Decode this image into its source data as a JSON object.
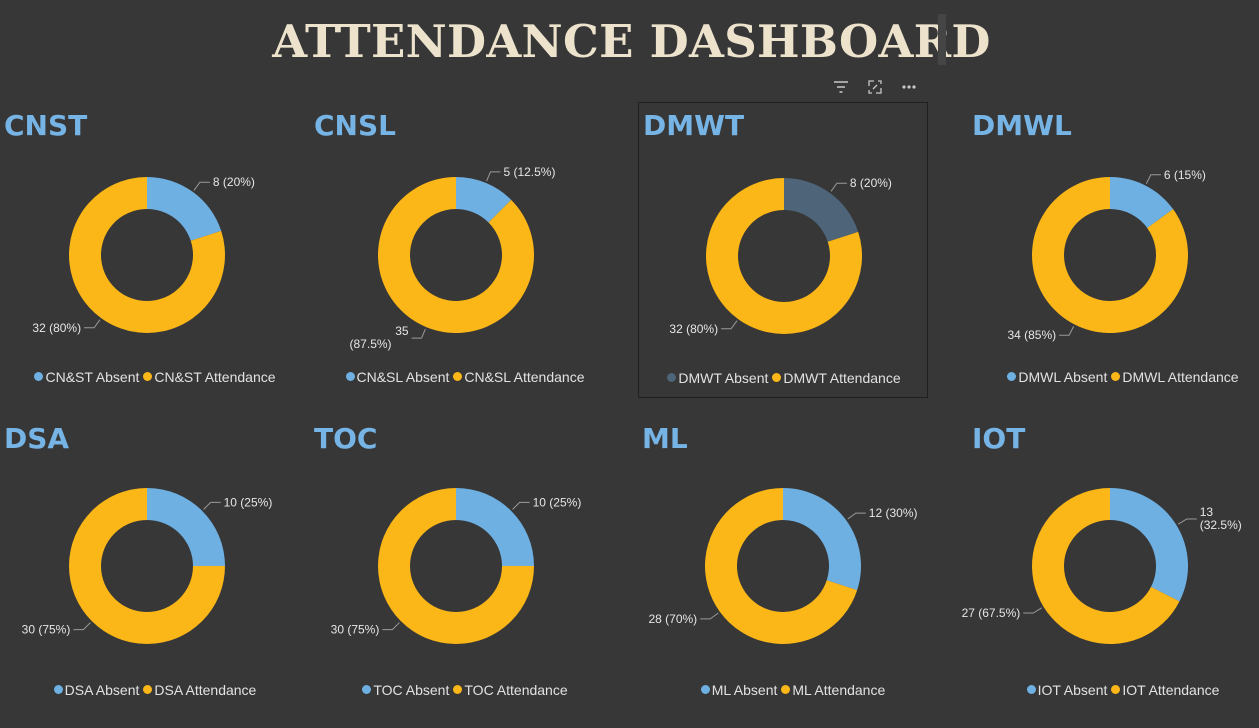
{
  "page": {
    "title": "ATTENDANCE DASHBOARD"
  },
  "toolbar": {
    "icons": [
      "filter-icon",
      "focus-mode-icon",
      "more-options-icon"
    ]
  },
  "colors": {
    "absent": "#6fb0e3",
    "absent_dimmed": "#4e6478",
    "attendance": "#fbb617",
    "title": "#ede3cd",
    "panel_title": "#76b4e6",
    "background": "#373737"
  },
  "chart_data": [
    {
      "type": "pie",
      "title": "CNST",
      "legend": [
        "CN&ST Absent",
        "CN&ST Attendance"
      ],
      "slices": [
        {
          "name": "CN&ST Absent",
          "value": 8,
          "percent": 20,
          "label": "8 (20%)"
        },
        {
          "name": "CN&ST Attendance",
          "value": 32,
          "percent": 80,
          "label": "32 (80%)"
        }
      ]
    },
    {
      "type": "pie",
      "title": "CNSL",
      "legend": [
        "CN&SL Absent",
        "CN&SL Attendance"
      ],
      "slices": [
        {
          "name": "CN&SL Absent",
          "value": 5,
          "percent": 12.5,
          "label": "5 (12.5%)"
        },
        {
          "name": "CN&SL Attendance",
          "value": 35,
          "percent": 87.5,
          "label": "35 (87.5%)"
        }
      ]
    },
    {
      "type": "pie",
      "title": "DMWT",
      "legend": [
        "DMWT Absent",
        "DMWT Attendance"
      ],
      "slices": [
        {
          "name": "DMWT Absent",
          "value": 8,
          "percent": 20,
          "label": "8 (20%)"
        },
        {
          "name": "DMWT Attendance",
          "value": 32,
          "percent": 80,
          "label": "32 (80%)"
        }
      ]
    },
    {
      "type": "pie",
      "title": "DMWL",
      "legend": [
        "DMWL Absent",
        "DMWL Attendance"
      ],
      "slices": [
        {
          "name": "DMWL Absent",
          "value": 6,
          "percent": 15,
          "label": "6 (15%)"
        },
        {
          "name": "DMWL Attendance",
          "value": 34,
          "percent": 85,
          "label": "34 (85%)"
        }
      ]
    },
    {
      "type": "pie",
      "title": "DSA",
      "legend": [
        "DSA Absent",
        "DSA Attendance"
      ],
      "slices": [
        {
          "name": "DSA Absent",
          "value": 10,
          "percent": 25,
          "label": "10 (25%)"
        },
        {
          "name": "DSA Attendance",
          "value": 30,
          "percent": 75,
          "label": "30 (75%)"
        }
      ]
    },
    {
      "type": "pie",
      "title": "TOC",
      "legend": [
        "TOC Absent",
        "TOC Attendance"
      ],
      "slices": [
        {
          "name": "TOC Absent",
          "value": 10,
          "percent": 25,
          "label": "10 (25%)"
        },
        {
          "name": "TOC Attendance",
          "value": 30,
          "percent": 75,
          "label": "30 (75%)"
        }
      ]
    },
    {
      "type": "pie",
      "title": "ML",
      "legend": [
        "ML Absent",
        "ML Attendance"
      ],
      "slices": [
        {
          "name": "ML Absent",
          "value": 12,
          "percent": 30,
          "label": "12 (30%)"
        },
        {
          "name": "ML Attendance",
          "value": 28,
          "percent": 70,
          "label": "28 (70%)"
        }
      ]
    },
    {
      "type": "pie",
      "title": "IOT",
      "legend": [
        "IOT Absent",
        "IOT Attendance"
      ],
      "slices": [
        {
          "name": "IOT Absent",
          "value": 13,
          "percent": 32.5,
          "label": "13 (32.5%)"
        },
        {
          "name": "IOT Attendance",
          "value": 27,
          "percent": 67.5,
          "label": "27 (67.5%)"
        }
      ]
    }
  ]
}
